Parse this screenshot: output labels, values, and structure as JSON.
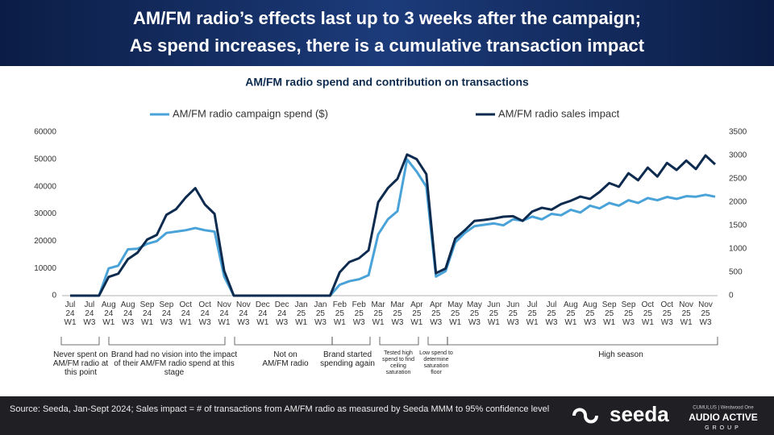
{
  "header": {
    "title_lines": [
      "AM/FM radio’s effects last up to 3 weeks after the campaign;",
      "As spend increases, there is a cumulative transaction impact"
    ]
  },
  "chart_data": {
    "type": "line",
    "title": "AM/FM radio spend and contribution on transactions",
    "categories": [
      "Jul 24 W1",
      null,
      "Jul 24 W3",
      null,
      "Aug 24 W1",
      null,
      "Aug 24 W3",
      null,
      "Sep 24 W1",
      null,
      "Sep 24 W3",
      null,
      "Oct 24 W1",
      null,
      "Oct 24 W3",
      null,
      "Nov 24 W1",
      null,
      "Nov 24 W3",
      null,
      "Dec 24 W1",
      null,
      "Dec 24 W3",
      null,
      "Jan 25 W1",
      null,
      "Jan 25 W3",
      null,
      "Feb 25 W1",
      null,
      "Feb 25 W3",
      null,
      "Mar 25 W1",
      null,
      "Mar 25 W3",
      null,
      "Apr 25 W1",
      null,
      "Apr 25 W3",
      null,
      "May 25 W1",
      null,
      "May 25 W3",
      null,
      "Jun 25 W1",
      null,
      "Jun 25 W3",
      null,
      "Jul 25 W1",
      null,
      "Jul 25 W3",
      null,
      "Aug 25 W1",
      null,
      "Aug 25 W3",
      null,
      "Sep 25 W1",
      null,
      "Sep 25 W3",
      null,
      "Oct 25 W1",
      null,
      "Oct 25 W3",
      null,
      "Nov 25 W1",
      null,
      "Nov 25 W3",
      null
    ],
    "series": [
      {
        "name": "AM/FM radio campaign spend ($)",
        "color": "#4aa3d8",
        "axis": "y",
        "values": [
          0,
          0,
          0,
          0,
          10000,
          11000,
          17000,
          17200,
          19000,
          20000,
          23000,
          23500,
          24000,
          24800,
          24000,
          23500,
          7000,
          0,
          0,
          0,
          0,
          0,
          0,
          0,
          0,
          0,
          0,
          0,
          4000,
          5300,
          6000,
          7500,
          22500,
          28000,
          31000,
          50000,
          45500,
          40000,
          7000,
          9000,
          19500,
          23000,
          25500,
          26000,
          26500,
          25800,
          28000,
          27500,
          29000,
          28000,
          30000,
          29500,
          31500,
          30500,
          33000,
          32000,
          34000,
          33000,
          35000,
          34000,
          35800,
          35000,
          36200,
          35500,
          36500,
          36300,
          37000,
          36300
        ]
      },
      {
        "name": "AM/FM radio sales impact",
        "color": "#0d2a4f",
        "axis": "y2",
        "values": [
          0,
          0,
          0,
          0,
          400,
          470,
          780,
          920,
          1200,
          1300,
          1730,
          1850,
          2100,
          2300,
          1950,
          1750,
          530,
          0,
          0,
          0,
          0,
          0,
          0,
          0,
          0,
          0,
          0,
          0,
          500,
          720,
          800,
          970,
          2000,
          2300,
          2500,
          3020,
          2920,
          2600,
          480,
          580,
          1220,
          1400,
          1600,
          1620,
          1650,
          1690,
          1700,
          1600,
          1800,
          1880,
          1840,
          1960,
          2030,
          2120,
          2070,
          2220,
          2410,
          2330,
          2620,
          2470,
          2740,
          2550,
          2840,
          2690,
          2890,
          2710,
          3000,
          2810
        ]
      }
    ],
    "ylim": [
      0,
      60000
    ],
    "yticks": [
      0,
      10000,
      20000,
      30000,
      40000,
      50000,
      60000
    ],
    "y2lim": [
      0,
      3500
    ],
    "y2ticks": [
      0,
      500,
      1000,
      1500,
      2000,
      2500,
      3000,
      3500
    ],
    "grid": false,
    "legend": "top",
    "annotations": [
      "Never spent on AM/FM radio at this point",
      "Brand had no vision into the impact of their AM/FM radio spend at this stage",
      "Not on AM/FM radio",
      "Brand started spending again",
      "Tested high spend to find ceiling saturation",
      "Low spend to determine saturation floor",
      "High season"
    ]
  },
  "footer": {
    "source": "Source: Seeda, Jan-Sept 2024; Sales impact = # of transactions from AM/FM radio as measured by Seeda MMM to 95% confidence level",
    "logo": "seeda",
    "partner_top": "CUMULUS | Westwood One",
    "partner": "AUDIO ACTIVE",
    "partner_sub": "GROUP"
  }
}
